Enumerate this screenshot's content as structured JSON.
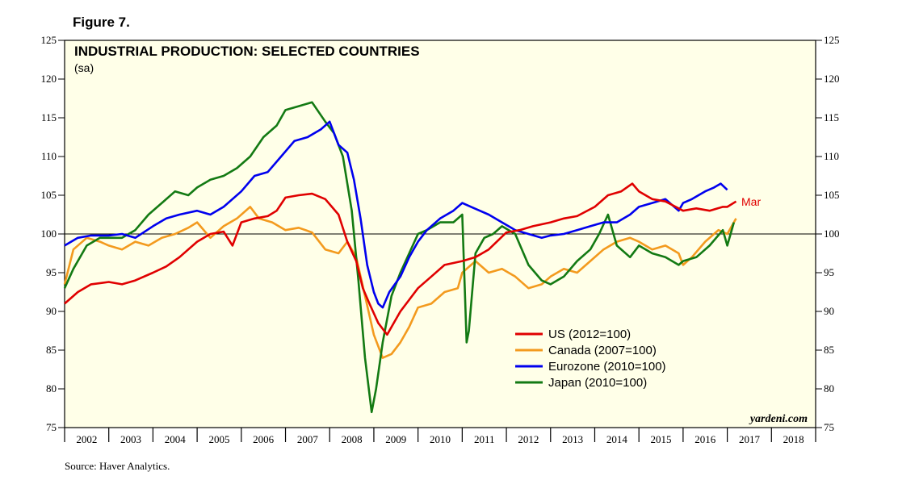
{
  "figure_label": "Figure 7.",
  "source": "Source: Haver Analytics.",
  "chart_data": {
    "type": "line",
    "title": "INDUSTRIAL PRODUCTION: SELECTED COUNTRIES",
    "subtitle": "(sa)",
    "watermark": "yardeni.com",
    "xlim": [
      2002,
      2019
    ],
    "ylim": [
      75,
      125
    ],
    "y_ticks": [
      75,
      80,
      85,
      90,
      95,
      100,
      105,
      110,
      115,
      120,
      125
    ],
    "x_tick_labels": [
      "2002",
      "2003",
      "2004",
      "2005",
      "2006",
      "2007",
      "2008",
      "2009",
      "2010",
      "2011",
      "2012",
      "2013",
      "2014",
      "2015",
      "2016",
      "2017",
      "2018"
    ],
    "reference_line": 100,
    "end_label": {
      "text": "Mar",
      "series": "US (2012=100)"
    },
    "legend_position": "center-right",
    "series": [
      {
        "name": "US (2012=100)",
        "color": "#e00000",
        "x": [
          2002.0,
          2002.3,
          2002.6,
          2003.0,
          2003.3,
          2003.6,
          2004.0,
          2004.3,
          2004.6,
          2005.0,
          2005.3,
          2005.6,
          2005.8,
          2006.0,
          2006.3,
          2006.6,
          2006.8,
          2007.0,
          2007.3,
          2007.6,
          2007.9,
          2008.2,
          2008.4,
          2008.6,
          2008.75,
          2008.9,
          2009.1,
          2009.3,
          2009.45,
          2009.6,
          2009.8,
          2010.0,
          2010.3,
          2010.6,
          2011.0,
          2011.3,
          2011.6,
          2012.0,
          2012.3,
          2012.6,
          2013.0,
          2013.3,
          2013.6,
          2014.0,
          2014.3,
          2014.6,
          2014.85,
          2015.0,
          2015.3,
          2015.6,
          2016.0,
          2016.3,
          2016.6,
          2016.9,
          2017.0,
          2017.2
        ],
        "values": [
          91.0,
          92.5,
          93.5,
          93.8,
          93.5,
          94.0,
          95.0,
          95.8,
          97.0,
          99.0,
          100.0,
          100.3,
          98.5,
          101.5,
          102.0,
          102.3,
          103.0,
          104.7,
          105.0,
          105.2,
          104.5,
          102.5,
          99.0,
          96.5,
          93.0,
          91.0,
          88.5,
          87.0,
          88.5,
          90.0,
          91.5,
          93.0,
          94.5,
          96.0,
          96.5,
          97.0,
          98.0,
          100.2,
          100.5,
          101.0,
          101.5,
          102.0,
          102.3,
          103.5,
          105.0,
          105.5,
          106.5,
          105.5,
          104.5,
          104.2,
          103.0,
          103.3,
          103.0,
          103.5,
          103.5,
          104.2
        ]
      },
      {
        "name": "Canada (2007=100)",
        "color": "#f39a1e",
        "x": [
          2002.0,
          2002.2,
          2002.5,
          2002.8,
          2003.0,
          2003.3,
          2003.6,
          2003.9,
          2004.2,
          2004.5,
          2004.8,
          2005.0,
          2005.3,
          2005.6,
          2005.9,
          2006.2,
          2006.4,
          2006.7,
          2007.0,
          2007.3,
          2007.6,
          2007.9,
          2008.2,
          2008.4,
          2008.6,
          2008.8,
          2009.0,
          2009.2,
          2009.4,
          2009.6,
          2009.8,
          2010.0,
          2010.3,
          2010.6,
          2010.9,
          2011.0,
          2011.3,
          2011.6,
          2011.9,
          2012.2,
          2012.5,
          2012.8,
          2013.0,
          2013.3,
          2013.6,
          2013.9,
          2014.2,
          2014.5,
          2014.8,
          2015.0,
          2015.3,
          2015.6,
          2015.9,
          2016.0,
          2016.2,
          2016.5,
          2016.8,
          2017.0,
          2017.2
        ],
        "values": [
          93.5,
          98.0,
          99.5,
          99.0,
          98.5,
          98.0,
          99.0,
          98.5,
          99.5,
          100.0,
          100.8,
          101.5,
          99.5,
          101.0,
          102.0,
          103.5,
          102.0,
          101.5,
          100.5,
          100.8,
          100.2,
          98.0,
          97.5,
          99.0,
          97.0,
          92.0,
          87.0,
          84.0,
          84.5,
          86.0,
          88.0,
          90.5,
          91.0,
          92.5,
          93.0,
          95.0,
          96.5,
          95.0,
          95.5,
          94.5,
          93.0,
          93.5,
          94.5,
          95.5,
          95.0,
          96.5,
          98.0,
          99.0,
          99.5,
          99.0,
          98.0,
          98.5,
          97.5,
          96.0,
          97.0,
          99.0,
          100.5,
          100.0,
          102.0
        ]
      },
      {
        "name": "Eurozone (2010=100)",
        "color": "#0000ee",
        "x": [
          2002.0,
          2002.3,
          2002.6,
          2003.0,
          2003.3,
          2003.6,
          2004.0,
          2004.3,
          2004.6,
          2005.0,
          2005.3,
          2005.6,
          2006.0,
          2006.3,
          2006.6,
          2006.9,
          2007.2,
          2007.5,
          2007.8,
          2008.0,
          2008.2,
          2008.4,
          2008.55,
          2008.7,
          2008.85,
          2009.0,
          2009.1,
          2009.2,
          2009.35,
          2009.6,
          2009.8,
          2010.0,
          2010.2,
          2010.5,
          2010.8,
          2011.0,
          2011.2,
          2011.4,
          2011.6,
          2011.9,
          2012.2,
          2012.5,
          2012.8,
          2013.0,
          2013.3,
          2013.6,
          2013.9,
          2014.2,
          2014.5,
          2014.8,
          2015.0,
          2015.3,
          2015.6,
          2015.9,
          2016.0,
          2016.2,
          2016.5,
          2016.7,
          2016.85,
          2017.0
        ],
        "values": [
          98.5,
          99.5,
          99.8,
          99.8,
          100.0,
          99.5,
          101.0,
          102.0,
          102.5,
          103.0,
          102.5,
          103.5,
          105.5,
          107.5,
          108.0,
          110.0,
          112.0,
          112.5,
          113.5,
          114.5,
          111.5,
          110.5,
          107.0,
          102.0,
          96.0,
          92.5,
          91.0,
          90.5,
          92.5,
          94.5,
          97.0,
          99.0,
          100.5,
          102.0,
          103.0,
          104.0,
          103.5,
          103.0,
          102.5,
          101.5,
          100.5,
          100.0,
          99.5,
          99.8,
          100.0,
          100.5,
          101.0,
          101.5,
          101.5,
          102.5,
          103.5,
          104.0,
          104.5,
          103.0,
          104.0,
          104.5,
          105.5,
          106.0,
          106.5,
          105.7
        ]
      },
      {
        "name": "Japan (2010=100)",
        "color": "#137a13",
        "x": [
          2002.0,
          2002.2,
          2002.5,
          2002.8,
          2003.0,
          2003.3,
          2003.6,
          2003.9,
          2004.2,
          2004.5,
          2004.8,
          2005.0,
          2005.3,
          2005.6,
          2005.9,
          2006.2,
          2006.5,
          2006.8,
          2007.0,
          2007.3,
          2007.6,
          2007.9,
          2008.1,
          2008.3,
          2008.5,
          2008.65,
          2008.8,
          2008.95,
          2009.05,
          2009.2,
          2009.4,
          2009.6,
          2009.8,
          2010.0,
          2010.2,
          2010.5,
          2010.8,
          2011.0,
          2011.1,
          2011.15,
          2011.3,
          2011.5,
          2011.7,
          2011.9,
          2012.2,
          2012.5,
          2012.8,
          2013.0,
          2013.3,
          2013.6,
          2013.9,
          2014.1,
          2014.3,
          2014.5,
          2014.8,
          2015.0,
          2015.3,
          2015.6,
          2015.9,
          2016.0,
          2016.3,
          2016.6,
          2016.9,
          2017.0,
          2017.15
        ],
        "values": [
          93.0,
          95.5,
          98.5,
          99.5,
          99.5,
          99.5,
          100.5,
          102.5,
          104.0,
          105.5,
          105.0,
          106.0,
          107.0,
          107.5,
          108.5,
          110.0,
          112.5,
          114.0,
          116.0,
          116.5,
          117.0,
          114.5,
          113.0,
          110.0,
          103.0,
          94.0,
          84.0,
          77.0,
          80.0,
          86.0,
          92.0,
          95.0,
          97.5,
          100.0,
          100.5,
          101.5,
          101.5,
          102.5,
          86.0,
          87.5,
          97.5,
          99.5,
          100.0,
          101.0,
          100.0,
          96.0,
          94.0,
          93.5,
          94.5,
          96.5,
          98.0,
          100.0,
          102.5,
          98.5,
          97.0,
          98.5,
          97.5,
          97.0,
          96.0,
          96.5,
          97.0,
          98.5,
          100.5,
          98.5,
          101.5
        ]
      }
    ]
  }
}
